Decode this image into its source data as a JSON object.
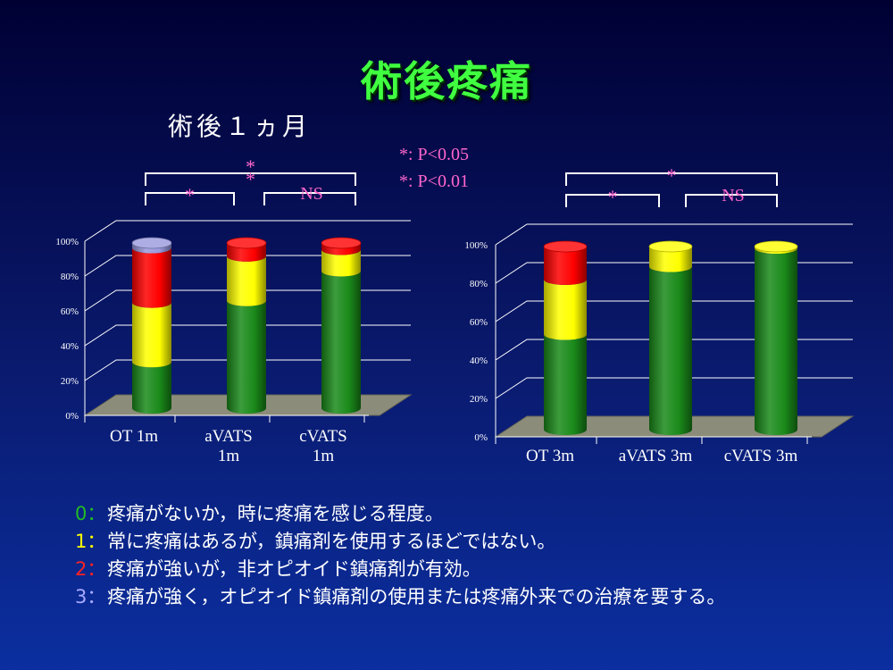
{
  "title": "術後疼痛",
  "subtitle": "術後１ヵ月",
  "significance_notes": [
    "*: P<0.05",
    "*: P<0.01"
  ],
  "colors": {
    "grade0": "#1a8a1a",
    "grade1": "#ffff00",
    "grade2": "#ff0000",
    "grade3": "#9999dd",
    "bracket": "#ffffff",
    "annotation": "#ff66cc"
  },
  "chart_data": [
    {
      "type": "bar",
      "stacked": true,
      "categories": [
        "OT 1m",
        "aVATS\n1m",
        "cVATS\n1m"
      ],
      "ylim": [
        0,
        100
      ],
      "yticks": [
        "0%",
        "20%",
        "40%",
        "60%",
        "80%",
        "100%"
      ],
      "series": [
        {
          "values": [
            28,
            65,
            83
          ]
        },
        {
          "values": [
            36,
            27,
            13
          ]
        },
        {
          "values": [
            33,
            8,
            4
          ]
        },
        {
          "values": [
            3,
            0,
            0
          ]
        }
      ],
      "brackets": [
        {
          "from": 0,
          "to": 1,
          "label": "*"
        },
        {
          "from": 1,
          "to": 2,
          "label": "NS"
        },
        {
          "from": 0,
          "to": 2,
          "label": "* *"
        }
      ]
    },
    {
      "type": "bar",
      "stacked": true,
      "categories": [
        "OT 3m",
        "aVATS 3m",
        "cVATS 3m"
      ],
      "ylim": [
        0,
        100
      ],
      "yticks": [
        "0%",
        "20%",
        "40%",
        "60%",
        "80%",
        "100%"
      ],
      "series": [
        {
          "values": [
            52,
            89,
            99
          ]
        },
        {
          "values": [
            30,
            11,
            1
          ]
        },
        {
          "values": [
            18,
            0,
            0
          ]
        },
        {
          "values": [
            0,
            0,
            0
          ]
        }
      ],
      "brackets": [
        {
          "from": 0,
          "to": 1,
          "label": "*"
        },
        {
          "from": 1,
          "to": 2,
          "label": "NS"
        },
        {
          "from": 0,
          "to": 2,
          "label": "*"
        }
      ]
    }
  ],
  "legend": [
    {
      "code": "0：",
      "color": "#22bb22",
      "text": "疼痛がないか，時に疼痛を感じる程度。"
    },
    {
      "code": "1：",
      "color": "#ffff00",
      "text": "常に疼痛はあるが，鎮痛剤を使用するほどではない。"
    },
    {
      "code": "2：",
      "color": "#ff2222",
      "text": "疼痛が強いが，非オピオイド鎮痛剤が有効。"
    },
    {
      "code": "3：",
      "color": "#aaaaff",
      "text": "疼痛が強く，オピオイド鎮痛剤の使用または疼痛外来での治療を要する。"
    }
  ]
}
